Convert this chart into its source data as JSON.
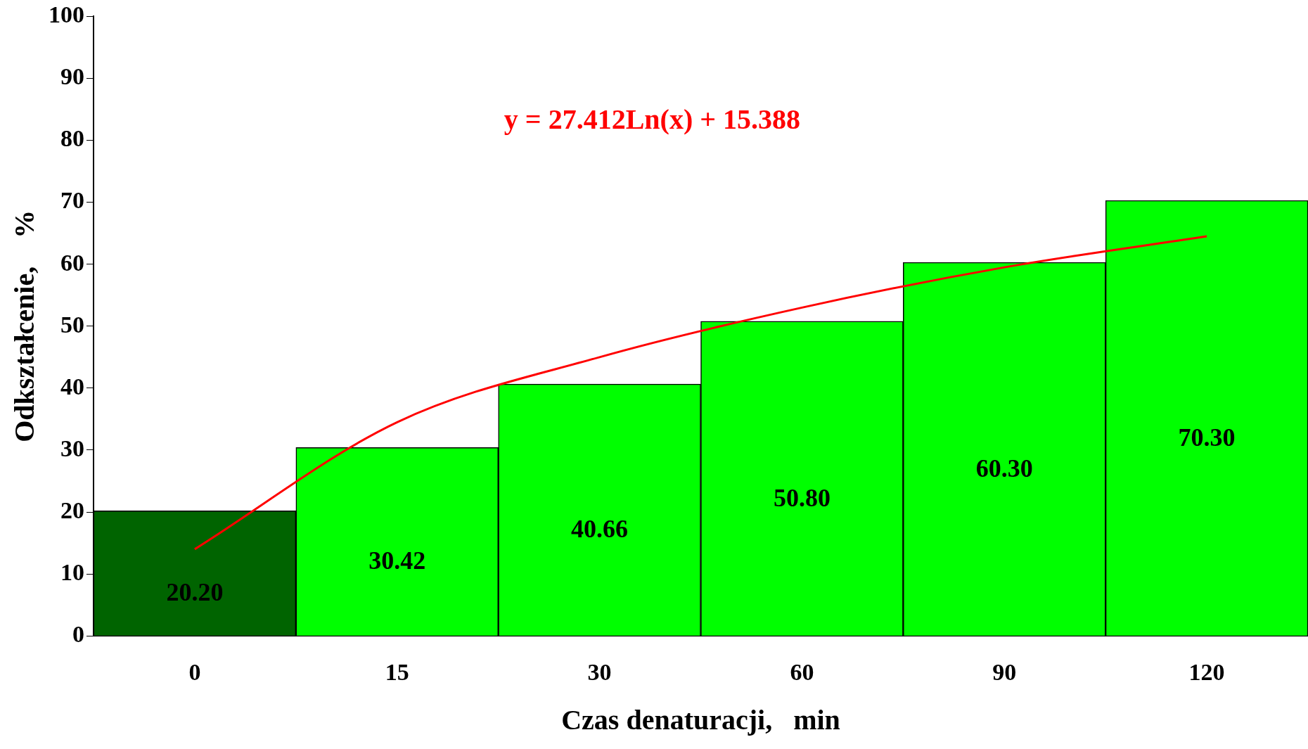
{
  "chart_data": {
    "type": "bar",
    "xlabel": "Czas denaturacji,   min",
    "ylabel": "Odkształcenie,    %",
    "categories": [
      "0",
      "15",
      "30",
      "60",
      "90",
      "120"
    ],
    "series": [
      {
        "colors": [
          "#006400",
          "#00ff00",
          "#00ff00",
          "#00ff00",
          "#00ff00",
          "#00ff00"
        ],
        "values": [
          20.2,
          30.42,
          40.66,
          50.8,
          60.3,
          70.3
        ],
        "value_labels": [
          "20.20",
          "30.42",
          "40.66",
          "50.80",
          "60.30",
          "70.30"
        ]
      },
      {
        "type": "line",
        "color": "#ff0000",
        "values": [
          14,
          34.5,
          45,
          53,
          59.5,
          64.5
        ]
      }
    ],
    "ylim": [
      0,
      100
    ],
    "yticks": [
      0,
      10,
      20,
      30,
      40,
      50,
      60,
      70,
      80,
      90,
      100
    ],
    "grid": false,
    "legend": false,
    "marker": "none",
    "annotations": [
      "y = 27.412Ln(x) + 15.388"
    ]
  }
}
